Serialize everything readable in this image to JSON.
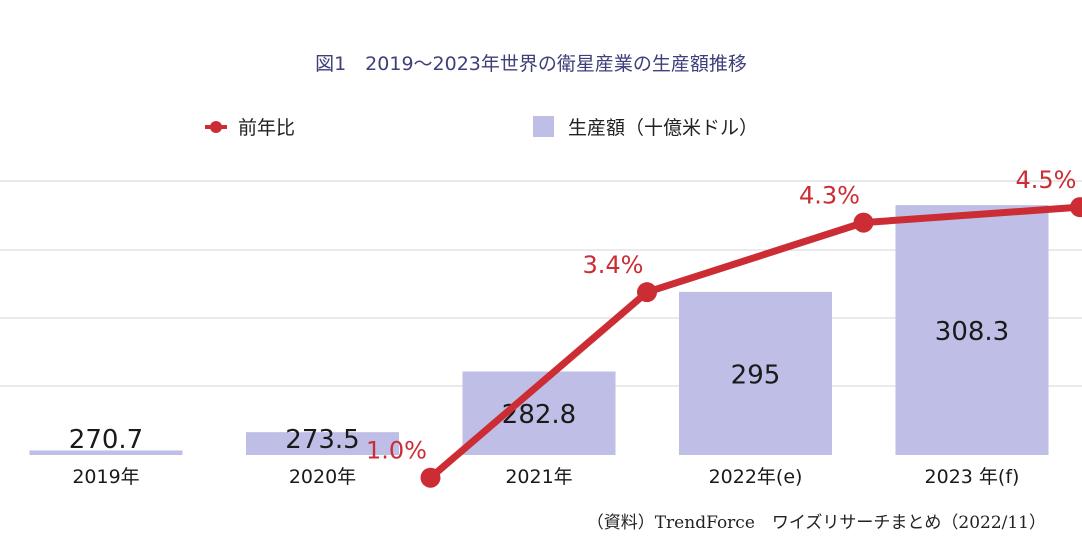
{
  "chart_data": {
    "type": "bar",
    "title": "図1　2019〜2023年世界の衛星産業の生産額推移",
    "categories": [
      "2019年",
      "2020年",
      "2021年",
      "2022年(e)",
      "2023 年(f)"
    ],
    "series": [
      {
        "name": "生産額（十億米ドル）",
        "type": "bar",
        "values": [
          270.7,
          273.5,
          282.8,
          295,
          308.3
        ],
        "labels": [
          "270.7",
          "273.5",
          "282.8",
          "295",
          "308.3"
        ]
      },
      {
        "name": "前年比",
        "type": "line",
        "values": [
          null,
          1.0,
          3.4,
          4.3,
          4.5
        ],
        "labels": [
          null,
          "1.0%",
          "3.4%",
          "4.3%",
          "4.5%"
        ]
      }
    ],
    "axis_range": [
      270,
      310
    ],
    "line_axis_range": [
      0,
      5.5
    ],
    "grid": true,
    "legend": "top-center",
    "source": "（資料）TrendForce　ワイズリサーチまとめ（2022/11）"
  },
  "colors": {
    "bar": "#bebee6",
    "line": "#cc2c34",
    "grid": "#d4d4d4",
    "title": "#3f3f7a"
  }
}
